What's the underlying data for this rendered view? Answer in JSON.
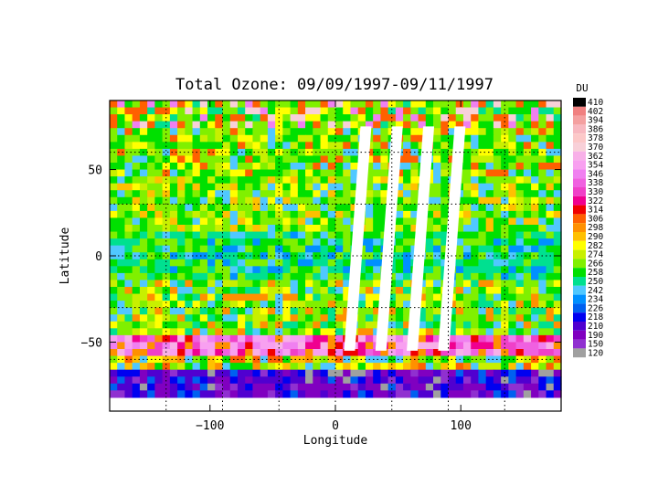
{
  "chart_data": {
    "type": "heatmap",
    "title": "Total Ozone: 09/09/1997-09/11/1997",
    "xlabel": "Longitude",
    "ylabel": "Latitude",
    "xlim": [
      -180,
      180
    ],
    "ylim": [
      -90,
      90
    ],
    "x_ticks": [
      -100,
      0,
      100
    ],
    "x_tick_labels": [
      "−100",
      "0",
      "100"
    ],
    "y_ticks": [
      50,
      0,
      -50
    ],
    "y_tick_labels": [
      "50",
      "0",
      "−50"
    ],
    "grid_lons": [
      -135,
      -90,
      -45,
      0,
      45,
      90,
      135
    ],
    "grid_lats": [
      60,
      30,
      0,
      -30,
      -60
    ],
    "grid": "dotted",
    "legend_title": "DU",
    "legend_placement": "right",
    "colorbar": [
      {
        "label": "410",
        "color": "#000000"
      },
      {
        "label": "402",
        "color": "#f08080"
      },
      {
        "label": "394",
        "color": "#f4a0a0"
      },
      {
        "label": "386",
        "color": "#f8b8c0"
      },
      {
        "label": "378",
        "color": "#fcc8c8"
      },
      {
        "label": "370",
        "color": "#f8d0d8"
      },
      {
        "label": "362",
        "color": "#f8b0e8"
      },
      {
        "label": "354",
        "color": "#f8a0f0"
      },
      {
        "label": "346",
        "color": "#f080f0"
      },
      {
        "label": "338",
        "color": "#f060e0"
      },
      {
        "label": "330",
        "color": "#f040c8"
      },
      {
        "label": "322",
        "color": "#f00090"
      },
      {
        "label": "314",
        "color": "#f00000"
      },
      {
        "label": "306",
        "color": "#ff6000"
      },
      {
        "label": "298",
        "color": "#ff9000"
      },
      {
        "label": "290",
        "color": "#ffc000"
      },
      {
        "label": "282",
        "color": "#ffff00"
      },
      {
        "label": "274",
        "color": "#c8f000"
      },
      {
        "label": "266",
        "color": "#80f000"
      },
      {
        "label": "258",
        "color": "#00e000"
      },
      {
        "label": "250",
        "color": "#00e090"
      },
      {
        "label": "242",
        "color": "#50c8ff"
      },
      {
        "label": "234",
        "color": "#0090ff"
      },
      {
        "label": "226",
        "color": "#0060f0"
      },
      {
        "label": "218",
        "color": "#0000f0"
      },
      {
        "label": "210",
        "color": "#5000d0"
      },
      {
        "label": "190",
        "color": "#8000c0"
      },
      {
        "label": "150",
        "color": "#9030d0"
      },
      {
        "label": "120",
        "color": "#a0a0a0"
      }
    ],
    "latitude_bands": [
      {
        "lat_range": [
          75,
          90
        ],
        "du": "mixed 258–386"
      },
      {
        "lat_range": [
          45,
          75
        ],
        "du": "mostly 258–282, with 306–338 patches"
      },
      {
        "lat_range": [
          15,
          45
        ],
        "du": "mostly 266–290"
      },
      {
        "lat_range": [
          -15,
          15
        ],
        "du": "mostly 242–266"
      },
      {
        "lat_range": [
          -45,
          -15
        ],
        "du": "mostly 250–282"
      },
      {
        "lat_range": [
          -60,
          -45
        ],
        "du": "322–362 ridge"
      },
      {
        "lat_range": [
          -68,
          -60
        ],
        "du": "266–306"
      },
      {
        "lat_range": [
          -90,
          -68
        ],
        "du": "150–226 ozone hole"
      }
    ]
  }
}
